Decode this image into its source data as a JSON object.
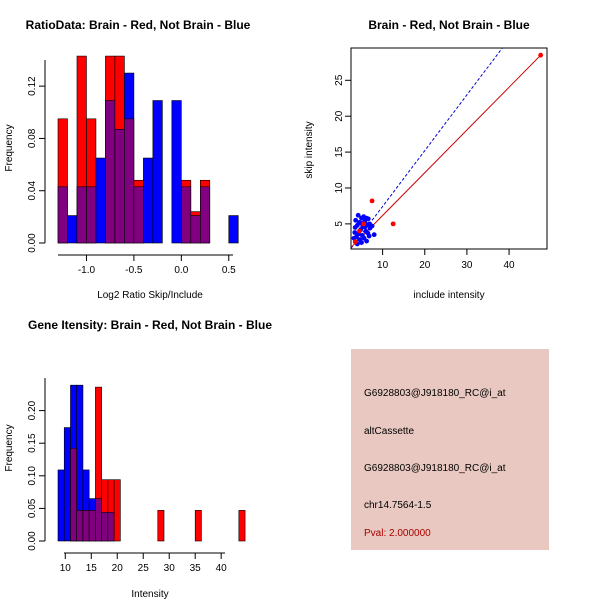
{
  "colors": {
    "red": "#ff0000",
    "blue": "#0000ff",
    "purple": "#800080",
    "info_panel": "#e8c8c0",
    "pval_text": "#aa0000",
    "line_blue": "#0000cc",
    "line_red": "#cc0000"
  },
  "chart_data": [
    {
      "type": "bar",
      "subtype": "overlaid-histogram",
      "title": "RatioData: Brain - Red, Not Brain - Blue",
      "xlabel": "Log2 Ratio Skip/Include",
      "ylabel": "Frequency",
      "xlim": [
        -1.3,
        0.65
      ],
      "ylim": [
        0,
        0.14
      ],
      "bin_start": -1.3,
      "bin_width": 0.1,
      "xticks": [
        -1.0,
        -0.5,
        0.0,
        0.5
      ],
      "xtick_labels": [
        "-1.0",
        "-0.5",
        "0.0",
        "0.5"
      ],
      "yticks": [
        0,
        0.04,
        0.08,
        0.12
      ],
      "ytick_labels": [
        "0.00",
        "0.04",
        "0.08",
        "0.12"
      ],
      "series": [
        {
          "name": "Brain",
          "color": "red",
          "values": [
            0.095,
            0,
            0.143,
            0.095,
            0,
            0.143,
            0.143,
            0.095,
            0.048,
            0,
            0,
            0,
            0,
            0.048,
            0.024,
            0.048,
            0,
            0,
            0
          ]
        },
        {
          "name": "Not Brain",
          "color": "blue",
          "values": [
            0.043,
            0.021,
            0.043,
            0.043,
            0.065,
            0.109,
            0.087,
            0.13,
            0.043,
            0.065,
            0.109,
            0,
            0.109,
            0.043,
            0.021,
            0.043,
            0,
            0,
            0.021
          ]
        }
      ]
    },
    {
      "type": "scatter",
      "title": "Brain - Red, Not Brain - Blue",
      "xlabel": "include intensity",
      "ylabel": "skip intensity",
      "xlim": [
        2.5,
        49
      ],
      "ylim": [
        1.5,
        29.5
      ],
      "xticks": [
        10,
        20,
        30,
        40
      ],
      "xtick_labels": [
        "10",
        "20",
        "30",
        "40"
      ],
      "yticks": [
        5,
        10,
        15,
        20,
        25
      ],
      "ytick_labels": [
        "5",
        "10",
        "15",
        "20",
        "25"
      ],
      "red_points": [
        [
          3.5,
          2.5
        ],
        [
          4.5,
          4.0
        ],
        [
          5.5,
          5.0
        ],
        [
          7.5,
          8.2
        ],
        [
          12.5,
          5.0
        ],
        [
          47.5,
          28.5
        ]
      ],
      "blue_points": [
        [
          3.2,
          3.0
        ],
        [
          3.4,
          3.8
        ],
        [
          3.5,
          4.5
        ],
        [
          3.6,
          5.5
        ],
        [
          3.8,
          3.2
        ],
        [
          4.0,
          4.8
        ],
        [
          4.2,
          6.2
        ],
        [
          4.3,
          3.6
        ],
        [
          4.5,
          5.2
        ],
        [
          4.6,
          2.8
        ],
        [
          4.8,
          4.2
        ],
        [
          5.0,
          5.8
        ],
        [
          5.2,
          3.4
        ],
        [
          5.3,
          4.6
        ],
        [
          5.5,
          6.0
        ],
        [
          5.6,
          3.0
        ],
        [
          5.8,
          5.4
        ],
        [
          6.0,
          4.0
        ],
        [
          6.2,
          2.6
        ],
        [
          6.3,
          4.9
        ],
        [
          6.5,
          3.7
        ],
        [
          6.6,
          5.7
        ],
        [
          6.8,
          3.3
        ],
        [
          7.0,
          4.4
        ],
        [
          7.5,
          4.7
        ],
        [
          8.0,
          3.5
        ],
        [
          6.2,
          5.8
        ],
        [
          5.0,
          2.4
        ],
        [
          4.0,
          2.2
        ],
        [
          5.8,
          4.6
        ],
        [
          4.9,
          5.1
        ],
        [
          6.9,
          5.0
        ]
      ],
      "lines": [
        {
          "name": "blue diagonal",
          "color": "line_blue",
          "dash": true,
          "x0": 2.5,
          "y0": 1.6,
          "x1": 38.4,
          "y1": 29.5
        },
        {
          "name": "red fit",
          "color": "line_red",
          "dash": false,
          "x0": 2.5,
          "y0": 1.7,
          "x1": 47.5,
          "y1": 28.5
        }
      ]
    },
    {
      "type": "bar",
      "subtype": "overlaid-histogram",
      "title": "Gene Itensity: Brain - Red, Not Brain - Blue",
      "xlabel": "Intensity",
      "ylabel": "Frequency",
      "xlim": [
        8.6,
        44.2
      ],
      "ylim": [
        0,
        0.25
      ],
      "bin_start": 8.6,
      "bin_width": 1.2,
      "xticks": [
        10,
        15,
        20,
        25,
        30,
        35,
        40
      ],
      "xtick_labels": [
        "10",
        "15",
        "20",
        "25",
        "30",
        "35",
        "40"
      ],
      "yticks": [
        0,
        0.05,
        0.1,
        0.15,
        0.2
      ],
      "ytick_labels": [
        "0.00",
        "0.05",
        "0.10",
        "0.15",
        "0.20"
      ],
      "series": [
        {
          "name": "Brain",
          "color": "red",
          "values": [
            0,
            0,
            0.142,
            0.047,
            0.047,
            0.047,
            0.236,
            0.094,
            0.094,
            0.094,
            0,
            0,
            0,
            0,
            0,
            0,
            0.047,
            0,
            0,
            0,
            0,
            0,
            0.047,
            0,
            0,
            0,
            0,
            0,
            0,
            0.047
          ]
        },
        {
          "name": "Not Brain",
          "color": "blue",
          "values": [
            0.109,
            0.174,
            0.239,
            0.239,
            0.109,
            0.065,
            0.065,
            0.044,
            0.044,
            0,
            0,
            0,
            0,
            0,
            0,
            0,
            0,
            0,
            0,
            0,
            0,
            0,
            0,
            0,
            0,
            0,
            0,
            0,
            0,
            0
          ]
        }
      ]
    }
  ],
  "info_panel": {
    "line1": "G6928803@J918180_RC@i_at",
    "line2": "altCassette",
    "line3": "G6928803@J918180_RC@i_at",
    "line4": "chr14.7564-1.5",
    "pval": "Pval: 2.000000"
  }
}
